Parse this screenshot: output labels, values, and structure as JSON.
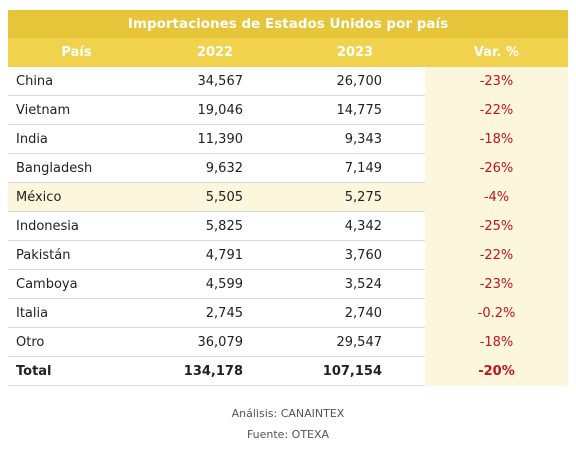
{
  "table": {
    "title": "Importaciones de Estados Unidos por país",
    "columns": [
      "País",
      "2022",
      "2023",
      "Var. %"
    ],
    "rows": [
      [
        "China",
        "34,567",
        "26,700",
        "-23%"
      ],
      [
        "Vietnam",
        "19,046",
        "14,775",
        "-22%"
      ],
      [
        "India",
        "11,390",
        "9,343",
        "-18%"
      ],
      [
        "Bangladesh",
        "9,632",
        "7,149",
        "-26%"
      ],
      [
        "México",
        "5,505",
        "5,275",
        "-4%"
      ],
      [
        "Indonesia",
        "5,825",
        "4,342",
        "-25%"
      ],
      [
        "Pakistán",
        "4,791",
        "3,760",
        "-22%"
      ],
      [
        "Camboya",
        "4,599",
        "3,524",
        "-23%"
      ],
      [
        "Italia",
        "2,745",
        "2,740",
        "-0.2%"
      ],
      [
        "Otro",
        "36,079",
        "29,547",
        "-18%"
      ]
    ],
    "total": [
      "Total",
      "134,178",
      "107,154",
      "-20%"
    ]
  },
  "footer": {
    "analysis": "Análisis: CANAINTEX",
    "source": "Fuente: OTEXA"
  }
}
